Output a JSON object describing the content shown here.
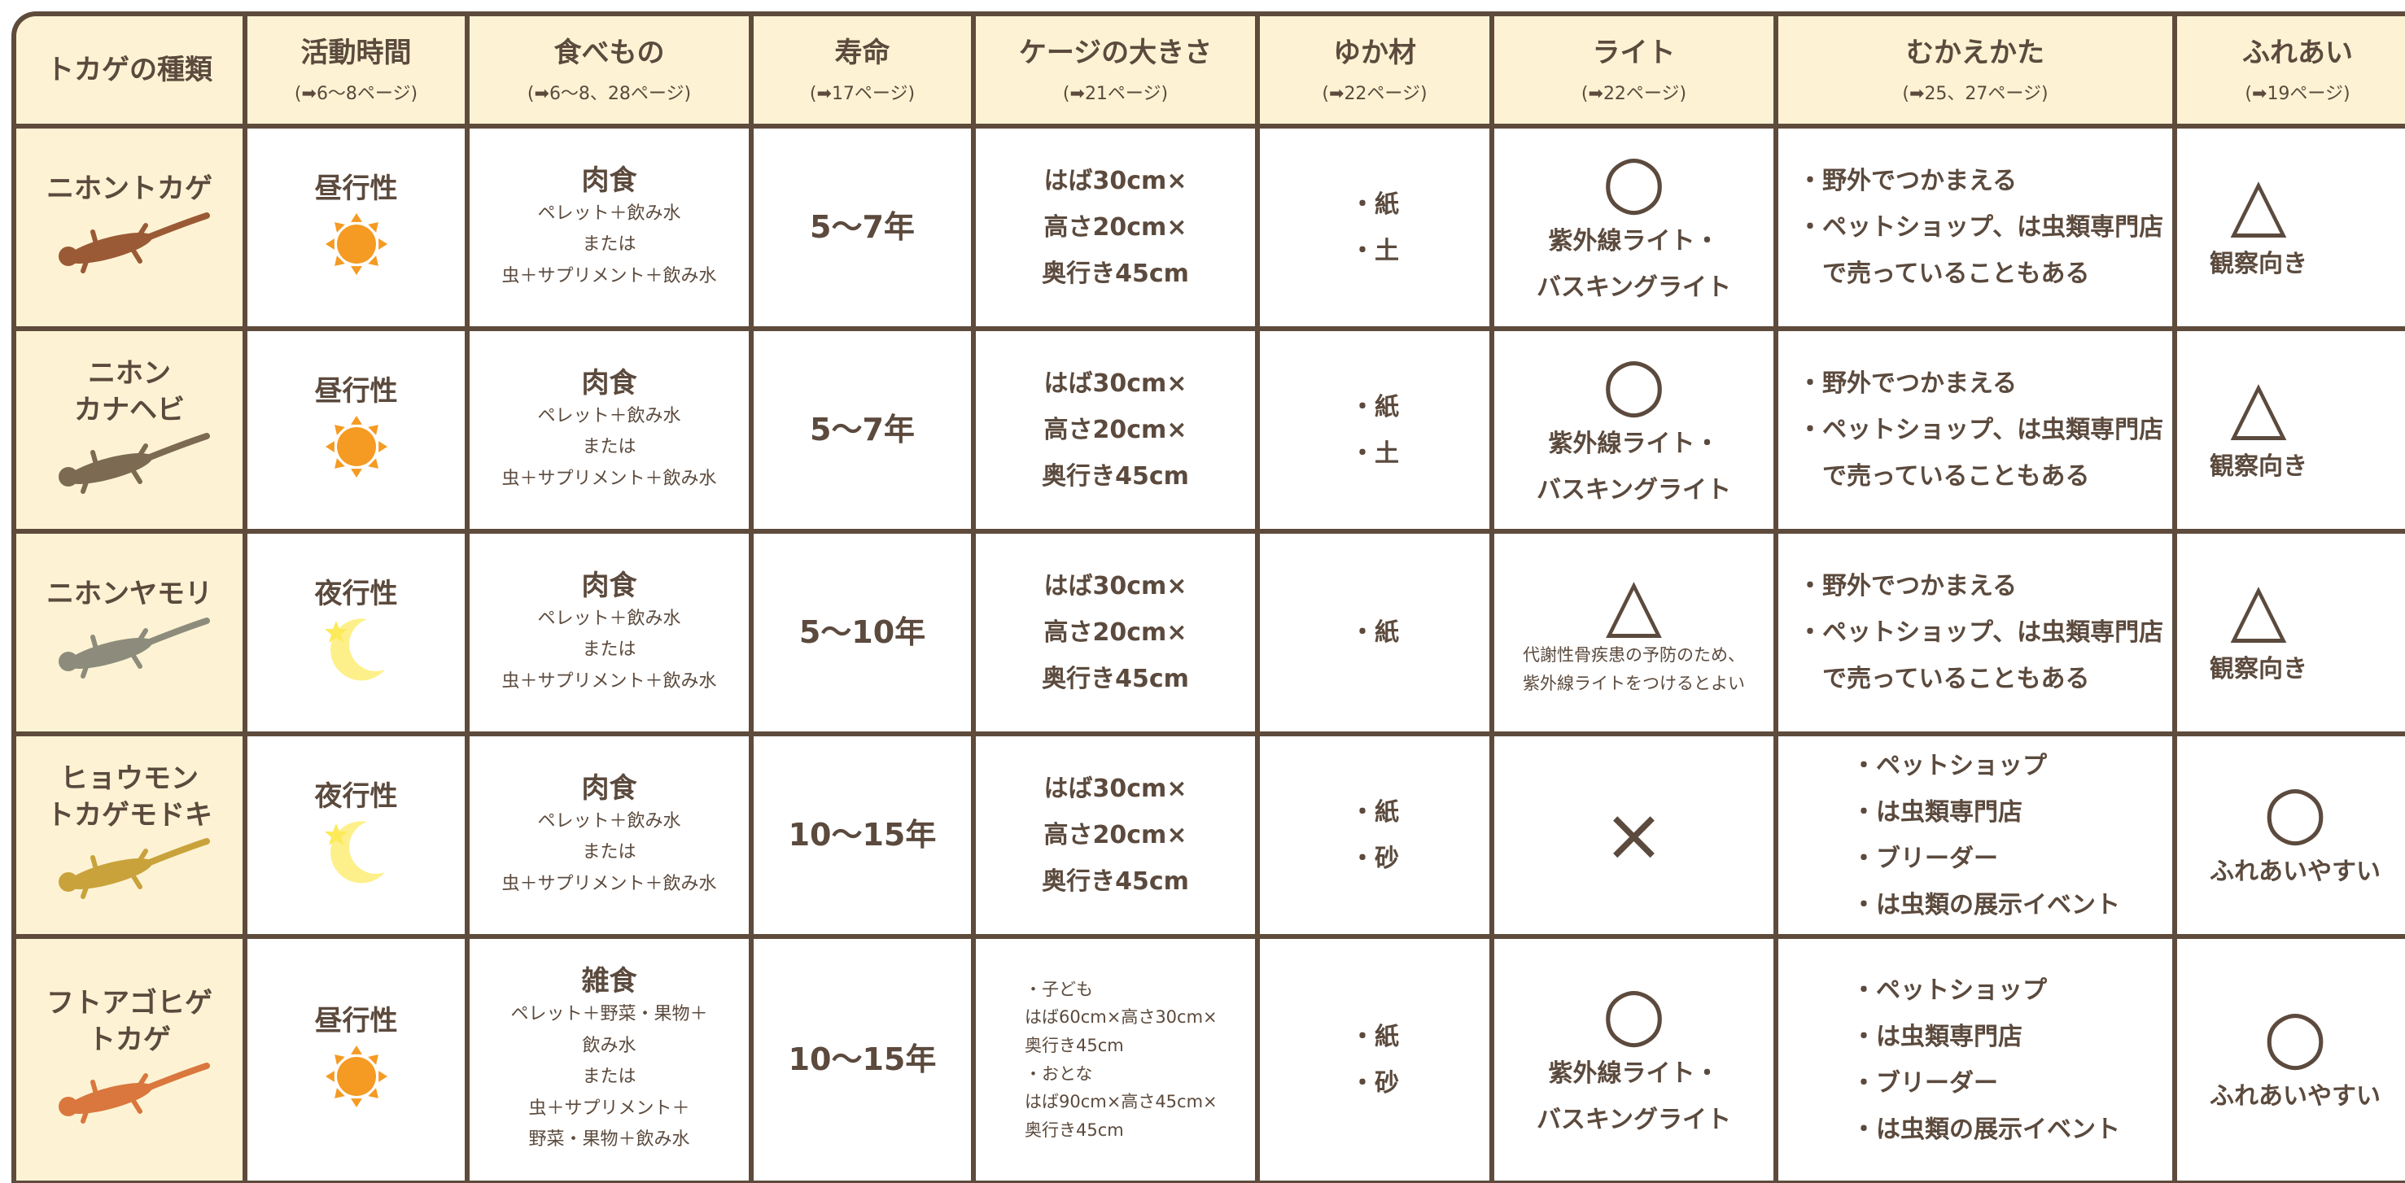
{
  "header": {
    "columns": [
      {
        "title": "トカゲの種類"
      },
      {
        "title": "活動時間",
        "ref": "(➡6～8ページ)"
      },
      {
        "title": "食べもの",
        "ref": "(➡6～8、28ページ)"
      },
      {
        "title": "寿命",
        "ref": "(➡17ページ)"
      },
      {
        "title": "ケージの大きさ",
        "ref": "(➡21ページ)"
      },
      {
        "title": "ゆか材",
        "ref": "(➡22ページ)"
      },
      {
        "title": "ライト",
        "ref": "(➡22ページ)"
      },
      {
        "title": "むかえかた",
        "ref": "(➡25、27ページ)"
      },
      {
        "title": "ふれあい",
        "ref": "(➡19ページ)"
      }
    ]
  },
  "rows": [
    {
      "name": [
        "ニホントカゲ"
      ],
      "activity": "昼行性",
      "food": {
        "type": "肉食",
        "lines": [
          "ペレット＋飲み水",
          "または",
          "虫＋サプリメント＋飲み水"
        ]
      },
      "lifespan": "5～7年",
      "cage": [
        "はば30cm×",
        "高さ20cm×",
        "奥行き45cm"
      ],
      "substrate": [
        "・紙",
        "・土"
      ],
      "light": {
        "mark": "○",
        "note": [
          "紫外線ライト・",
          "バスキングライト"
        ]
      },
      "acquire": [
        "・野外でつかまえる",
        "・ペットショップ、は虫類専門店",
        "　で売っていることもある"
      ],
      "contact": {
        "mark": "△",
        "note": "観察向き"
      }
    },
    {
      "name": [
        "ニホン",
        "カナヘビ"
      ],
      "activity": "昼行性",
      "food": {
        "type": "肉食",
        "lines": [
          "ペレット＋飲み水",
          "または",
          "虫＋サプリメント＋飲み水"
        ]
      },
      "lifespan": "5～7年",
      "cage": [
        "はば30cm×",
        "高さ20cm×",
        "奥行き45cm"
      ],
      "substrate": [
        "・紙",
        "・土"
      ],
      "light": {
        "mark": "○",
        "note": [
          "紫外線ライト・",
          "バスキングライト"
        ]
      },
      "acquire": [
        "・野外でつかまえる",
        "・ペットショップ、は虫類専門店",
        "　で売っていることもある"
      ],
      "contact": {
        "mark": "△",
        "note": "観察向き"
      }
    },
    {
      "name": [
        "ニホンヤモリ"
      ],
      "activity": "夜行性",
      "food": {
        "type": "肉食",
        "lines": [
          "ペレット＋飲み水",
          "または",
          "虫＋サプリメント＋飲み水"
        ]
      },
      "lifespan": "5～10年",
      "cage": [
        "はば30cm×",
        "高さ20cm×",
        "奥行き45cm"
      ],
      "substrate": [
        "・紙"
      ],
      "light": {
        "mark": "△",
        "note": [
          "代謝性骨疾患の予防のため、",
          "紫外線ライトをつけるとよい"
        ]
      },
      "acquire": [
        "・野外でつかまえる",
        "・ペットショップ、は虫類専門店",
        "　で売っていることもある"
      ],
      "contact": {
        "mark": "△",
        "note": "観察向き"
      }
    },
    {
      "name": [
        "ヒョウモン",
        "トカゲモドキ"
      ],
      "activity": "夜行性",
      "food": {
        "type": "肉食",
        "lines": [
          "ペレット＋飲み水",
          "または",
          "虫＋サプリメント＋飲み水"
        ]
      },
      "lifespan": "10～15年",
      "cage": [
        "はば30cm×",
        "高さ20cm×",
        "奥行き45cm"
      ],
      "substrate": [
        "・紙",
        "・砂"
      ],
      "light": {
        "mark": "×",
        "note": []
      },
      "acquire": [
        "・ペットショップ",
        "・は虫類専門店",
        "・ブリーダー",
        "・は虫類の展示イベント"
      ],
      "contact": {
        "mark": "○",
        "note": "ふれあいやすい"
      }
    },
    {
      "name": [
        "フトアゴヒゲ",
        "トカゲ"
      ],
      "activity": "昼行性",
      "food": {
        "type": "雑食",
        "lines": [
          "ペレット＋野菜・果物＋",
          "飲み水",
          "または",
          "虫＋サプリメント＋",
          "野菜・果物＋飲み水"
        ]
      },
      "lifespan": "10～15年",
      "cage": [
        "・子ども",
        "はば60cm×高さ30cm×",
        "奥行き45cm",
        "・おとな",
        "はば90cm×高さ45cm×",
        "奥行き45cm"
      ],
      "substrate": [
        "・紙",
        "・砂"
      ],
      "light": {
        "mark": "○",
        "note": [
          "紫外線ライト・",
          "バスキングライト"
        ]
      },
      "acquire": [
        "・ペットショップ",
        "・は虫類専門店",
        "・ブリーダー",
        "・は虫類の展示イベント"
      ],
      "contact": {
        "mark": "○",
        "note": "ふれあいやすい"
      }
    }
  ]
}
